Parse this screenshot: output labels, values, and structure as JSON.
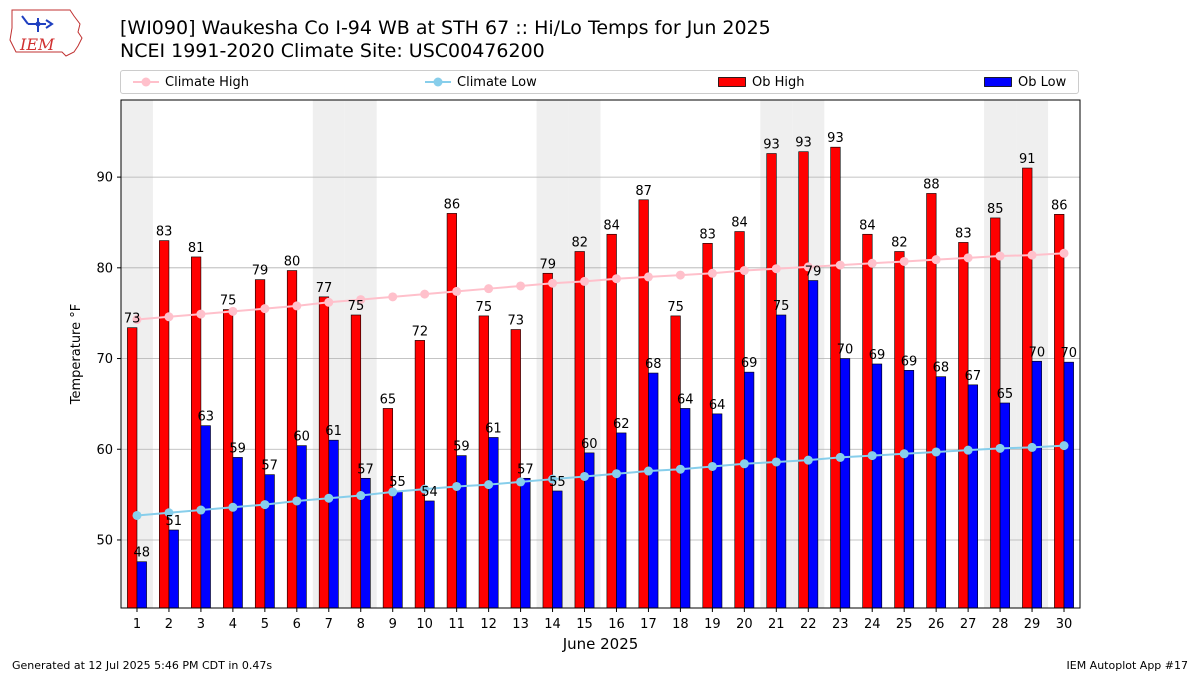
{
  "header": {
    "title": "[WI090] Waukesha Co I-94 WB at STH 67  :: Hi/Lo Temps for Jun 2025",
    "subtitle": "NCEI 1991-2020 Climate Site: USC00476200",
    "logo_text": "IEM"
  },
  "footer": {
    "generated": "Generated at 12 Jul 2025 5:46 PM CDT in 0.47s",
    "app": "IEM Autoplot App #17"
  },
  "colors": {
    "ob_high": "#ff0000",
    "ob_low": "#0000ff",
    "climate_high": "#ffc0cb",
    "climate_low": "#87ceeb",
    "weekend_band": "#efefef",
    "grid": "#b0b0b0"
  },
  "chart_data": {
    "type": "bar",
    "xlabel": "June 2025",
    "ylabel": "Temperature °F",
    "ylim": [
      42.5,
      98.5
    ],
    "yticks": [
      50,
      60,
      70,
      80,
      90
    ],
    "grid": "horizontal",
    "legend_position": "top",
    "categories": [
      1,
      2,
      3,
      4,
      5,
      6,
      7,
      8,
      9,
      10,
      11,
      12,
      13,
      14,
      15,
      16,
      17,
      18,
      19,
      20,
      21,
      22,
      23,
      24,
      25,
      26,
      27,
      28,
      29,
      30
    ],
    "weekend_days": [
      1,
      7,
      8,
      14,
      15,
      21,
      22,
      28,
      29
    ],
    "series": [
      {
        "name": "Ob High",
        "kind": "bar",
        "values": [
          73.4,
          83.0,
          81.2,
          75.4,
          78.7,
          79.7,
          76.8,
          74.8,
          64.5,
          72.0,
          86.0,
          74.7,
          73.2,
          79.4,
          81.8,
          83.7,
          87.5,
          74.7,
          82.7,
          84.0,
          92.6,
          92.8,
          93.3,
          83.7,
          81.8,
          88.2,
          82.8,
          85.5,
          91.0,
          85.9
        ],
        "labels": [
          "73",
          "83",
          "81",
          "75",
          "79",
          "80",
          "77",
          "75",
          "65",
          "72",
          "86",
          "75",
          "73",
          "79",
          "82",
          "84",
          "87",
          "75",
          "83",
          "84",
          "93",
          "93",
          "93",
          "84",
          "82",
          "88",
          "83",
          "85",
          "91",
          "86"
        ]
      },
      {
        "name": "Ob Low",
        "kind": "bar",
        "values": [
          47.6,
          51.1,
          62.6,
          59.1,
          57.2,
          60.4,
          61.0,
          56.8,
          55.4,
          54.3,
          59.3,
          61.3,
          56.8,
          55.4,
          59.6,
          61.8,
          68.4,
          64.5,
          63.9,
          68.5,
          74.8,
          78.6,
          70.0,
          69.4,
          68.7,
          68.0,
          67.1,
          65.1,
          69.7,
          69.6
        ],
        "labels": [
          "48",
          "51",
          "63",
          "59",
          "57",
          "60",
          "61",
          "57",
          "55",
          "54",
          "59",
          "61",
          "57",
          "55",
          "60",
          "62",
          "68",
          "64",
          "64",
          "69",
          "75",
          "79",
          "70",
          "69",
          "69",
          "68",
          "67",
          "65",
          "70",
          "70"
        ]
      },
      {
        "name": "Climate High",
        "kind": "line",
        "values": [
          74.3,
          74.6,
          74.9,
          75.2,
          75.5,
          75.8,
          76.2,
          76.5,
          76.8,
          77.1,
          77.4,
          77.7,
          78.0,
          78.3,
          78.5,
          78.8,
          79.0,
          79.2,
          79.4,
          79.7,
          79.9,
          80.1,
          80.3,
          80.5,
          80.7,
          80.9,
          81.1,
          81.3,
          81.4,
          81.6
        ]
      },
      {
        "name": "Climate Low",
        "kind": "line",
        "values": [
          52.7,
          53.0,
          53.3,
          53.6,
          53.9,
          54.3,
          54.6,
          54.9,
          55.3,
          55.6,
          55.9,
          56.1,
          56.4,
          56.7,
          57.0,
          57.3,
          57.6,
          57.8,
          58.1,
          58.4,
          58.6,
          58.8,
          59.1,
          59.3,
          59.5,
          59.7,
          59.9,
          60.1,
          60.2,
          60.4
        ]
      }
    ]
  }
}
